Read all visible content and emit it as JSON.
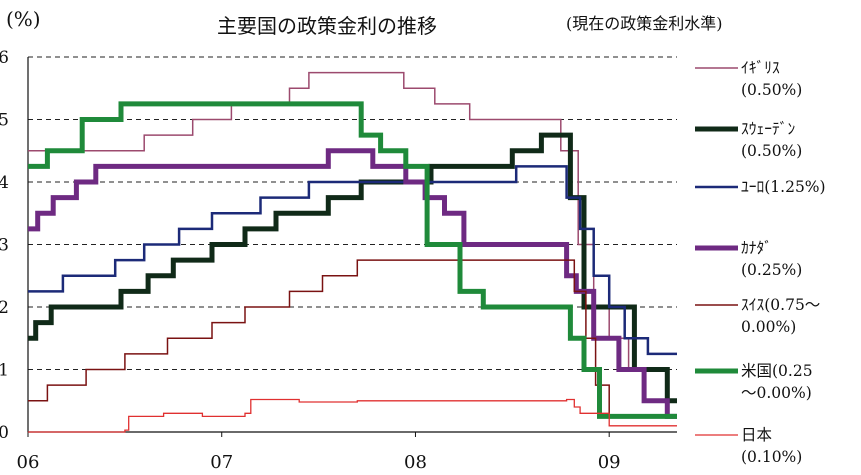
{
  "chart_data": {
    "type": "line",
    "title": "主要国の政策金利の推移",
    "subtitle": "(現在の政策金利水準)",
    "ylabel": "(%)",
    "xlabel": "",
    "ylim": [
      0,
      6
    ],
    "xlim": [
      2006.0,
      2009.35
    ],
    "y_ticks": [
      "0",
      "1",
      "2",
      "3",
      "4",
      "5",
      "6"
    ],
    "x_ticks": [
      {
        "label": "06",
        "x": 2006.0
      },
      {
        "label": "07",
        "x": 2007.0
      },
      {
        "label": "08",
        "x": 2008.0
      },
      {
        "label": "09",
        "x": 2009.0
      }
    ],
    "grid": "horizontal dashed",
    "legend_position": "right",
    "series": [
      {
        "name": "イギリス",
        "legend_lines": [
          "ｲｷﾞﾘｽ",
          "(0.50%)"
        ],
        "color": "#9c4a6e",
        "width": 1.5,
        "x": [
          2006.0,
          2006.6,
          2006.85,
          2007.05,
          2007.35,
          2007.45,
          2007.94,
          2008.1,
          2008.28,
          2008.75,
          2008.84,
          2008.92,
          2009.0,
          2009.1,
          2009.18,
          2009.35
        ],
        "y": [
          4.5,
          4.75,
          5.0,
          5.25,
          5.5,
          5.75,
          5.5,
          5.25,
          5.0,
          4.5,
          3.0,
          2.0,
          1.5,
          1.0,
          0.5,
          0.5
        ]
      },
      {
        "name": "スウェーデン",
        "legend_lines": [
          "ｽｳｪｰﾃﾞﾝ",
          "(0.50%)"
        ],
        "color": "#102a18",
        "width": 5,
        "x": [
          2006.0,
          2006.04,
          2006.12,
          2006.48,
          2006.62,
          2006.75,
          2006.95,
          2007.12,
          2007.28,
          2007.42,
          2007.55,
          2007.72,
          2008.08,
          2008.5,
          2008.65,
          2008.8,
          2008.87,
          2008.95,
          2009.13,
          2009.3,
          2009.35
        ],
        "y": [
          1.5,
          1.75,
          2.0,
          2.25,
          2.5,
          2.75,
          3.0,
          3.25,
          3.5,
          3.5,
          3.75,
          4.0,
          4.25,
          4.5,
          4.75,
          3.75,
          2.0,
          2.0,
          1.0,
          0.5,
          0.5
        ]
      },
      {
        "name": "ユーロ",
        "legend_lines": [
          "ﾕｰﾛ(1.25%)"
        ],
        "color": "#1c2a78",
        "width": 2.5,
        "x": [
          2006.0,
          2006.18,
          2006.45,
          2006.6,
          2006.78,
          2006.95,
          2007.2,
          2007.45,
          2008.52,
          2008.78,
          2008.85,
          2008.92,
          2009.0,
          2009.08,
          2009.2,
          2009.35
        ],
        "y": [
          2.25,
          2.5,
          2.75,
          3.0,
          3.25,
          3.5,
          3.75,
          4.0,
          4.25,
          3.75,
          3.25,
          2.5,
          2.0,
          1.5,
          1.25,
          1.25
        ]
      },
      {
        "name": "カナダ",
        "legend_lines": [
          "ｶﾅﾀﾞ",
          "(0.25%)"
        ],
        "color": "#6e2a82",
        "width": 5,
        "x": [
          2006.0,
          2006.05,
          2006.13,
          2006.25,
          2006.35,
          2007.55,
          2007.78,
          2007.95,
          2008.05,
          2008.15,
          2008.25,
          2008.35,
          2008.78,
          2008.83,
          2008.92,
          2009.05,
          2009.18,
          2009.3,
          2009.35
        ],
        "y": [
          3.25,
          3.5,
          3.75,
          4.0,
          4.25,
          4.5,
          4.25,
          4.0,
          3.75,
          3.5,
          3.0,
          3.0,
          2.5,
          2.25,
          1.5,
          1.0,
          0.5,
          0.25,
          0.25
        ]
      },
      {
        "name": "スイス",
        "legend_lines": [
          "ｽｲｽ(0.75～",
          "0.00%)"
        ],
        "color": "#7a1212",
        "width": 1.5,
        "x": [
          2006.0,
          2006.1,
          2006.3,
          2006.5,
          2006.72,
          2006.95,
          2007.12,
          2007.35,
          2007.52,
          2007.7,
          2008.82,
          2008.88,
          2008.93,
          2009.0,
          2009.35
        ],
        "y": [
          0.5,
          0.75,
          1.0,
          1.25,
          1.5,
          1.75,
          2.0,
          2.25,
          2.5,
          2.75,
          2.25,
          1.5,
          0.75,
          0.25,
          0.25
        ]
      },
      {
        "name": "米国",
        "legend_lines": [
          "米国(0.25",
          "～0.00%)"
        ],
        "color": "#1f8a3a",
        "width": 5,
        "x": [
          2006.0,
          2006.1,
          2006.28,
          2006.48,
          2007.72,
          2007.82,
          2007.95,
          2008.06,
          2008.1,
          2008.23,
          2008.35,
          2008.8,
          2008.87,
          2008.95,
          2009.35
        ],
        "y": [
          4.25,
          4.5,
          5.0,
          5.25,
          4.75,
          4.5,
          4.25,
          3.0,
          3.0,
          2.25,
          2.0,
          1.5,
          1.0,
          0.25,
          0.25
        ]
      },
      {
        "name": "日本",
        "legend_lines": [
          "日本",
          "(0.10%)"
        ],
        "color": "#e03030",
        "width": 1.3,
        "x": [
          2006.0,
          2006.25,
          2006.5,
          2006.52,
          2006.7,
          2006.9,
          2007.12,
          2007.15,
          2007.4,
          2007.7,
          2007.9,
          2008.2,
          2008.5,
          2008.78,
          2008.82,
          2008.85,
          2009.0,
          2009.35
        ],
        "y": [
          0.0,
          0.0,
          0.03,
          0.25,
          0.3,
          0.25,
          0.3,
          0.52,
          0.48,
          0.5,
          0.5,
          0.5,
          0.5,
          0.52,
          0.4,
          0.3,
          0.1,
          0.1
        ]
      }
    ]
  }
}
